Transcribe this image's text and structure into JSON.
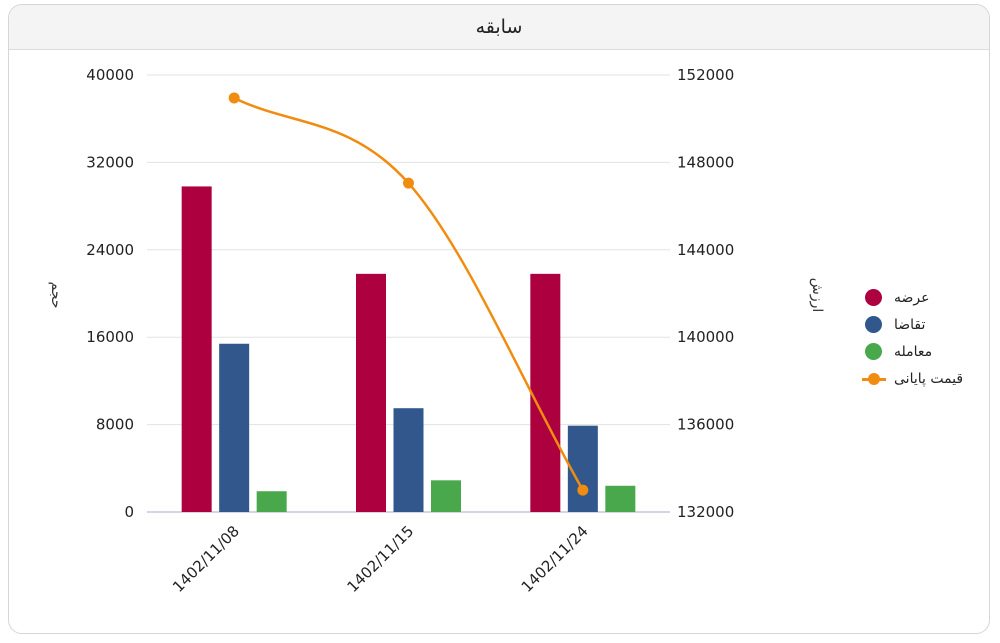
{
  "card": {
    "title": "سابقه"
  },
  "chart_data": {
    "type": "bar",
    "title": "سابقه",
    "categories": [
      "1402/11/08",
      "1402/11/15",
      "1402/11/24"
    ],
    "series": [
      {
        "name": "عرضه",
        "type": "bar",
        "axis": "left",
        "color": "#ad003f",
        "values": [
          29800,
          21800,
          21800
        ]
      },
      {
        "name": "تقاضا",
        "type": "bar",
        "axis": "left",
        "color": "#31578c",
        "values": [
          15400,
          9500,
          7900
        ]
      },
      {
        "name": "معامله",
        "type": "bar",
        "axis": "left",
        "color": "#48a84b",
        "values": [
          1900,
          2900,
          2400
        ]
      },
      {
        "name": "قیمت پایانی",
        "type": "line",
        "axis": "right",
        "color": "#f08c10",
        "values": [
          150950,
          147050,
          133000
        ]
      }
    ],
    "y_left": {
      "label": "حجم",
      "min": 0,
      "max": 40000,
      "ticks": [
        "40000",
        "32000",
        "24000",
        "16000",
        "8000",
        "0"
      ]
    },
    "y_right": {
      "label": "ارزش",
      "min": 132000,
      "max": 152000,
      "ticks": [
        "152000",
        "148000",
        "144000",
        "140000",
        "136000",
        "132000"
      ]
    },
    "grid": true,
    "legend": "right"
  }
}
